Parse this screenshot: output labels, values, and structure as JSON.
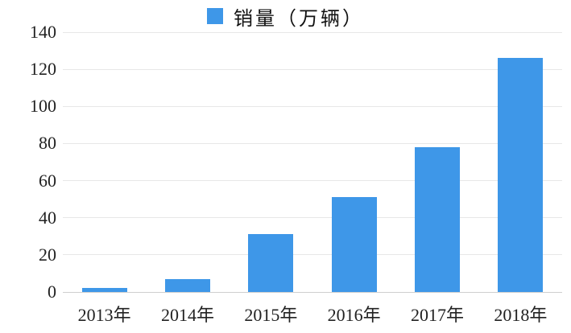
{
  "chart_data": {
    "type": "bar",
    "title": "",
    "legend_label": "销量（万辆）",
    "categories": [
      "2013年",
      "2014年",
      "2015年",
      "2016年",
      "2017年",
      "2018年"
    ],
    "values": [
      2,
      7,
      31,
      51,
      78,
      126
    ],
    "xlabel": "",
    "ylabel": "",
    "ylim": [
      0,
      140
    ],
    "y_ticks": [
      0,
      20,
      40,
      60,
      80,
      100,
      120,
      140
    ],
    "grid": true,
    "legend_position": "top-center",
    "bar_color": "#3E97E8",
    "gridline_color": "#e7e7e7",
    "baseline_color": "#cfcfcf",
    "text_color": "#222222"
  }
}
